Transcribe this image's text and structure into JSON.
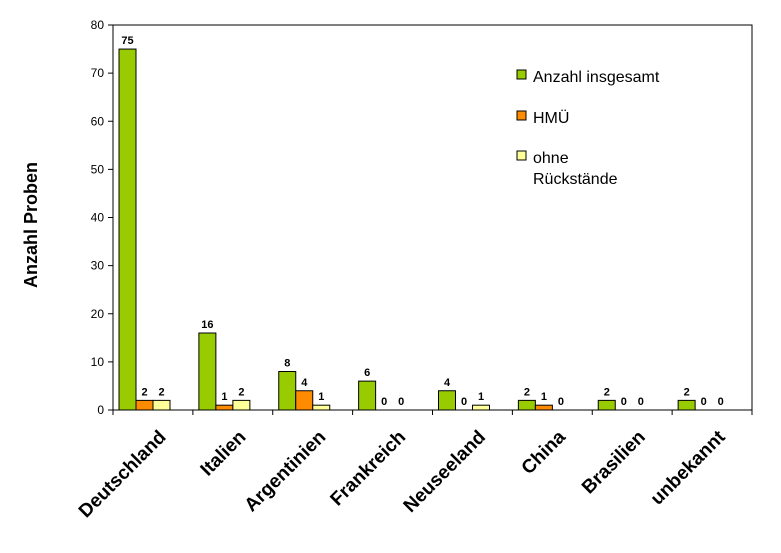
{
  "chart_data": {
    "type": "bar",
    "title": "",
    "xlabel": "",
    "ylabel": "Anzahl Proben",
    "ylim": [
      0,
      80
    ],
    "yticks": [
      0,
      10,
      20,
      30,
      40,
      50,
      60,
      70,
      80
    ],
    "grid": false,
    "legend_position": "top-right",
    "categories": [
      "Deutschland",
      "Italien",
      "Argentinien",
      "Frankreich",
      "Neuseeland",
      "China",
      "Brasilien",
      "unbekannt"
    ],
    "series": [
      {
        "name": "Anzahl insgesamt",
        "color": "#99CC00",
        "values": [
          75,
          16,
          8,
          6,
          4,
          2,
          2,
          2
        ]
      },
      {
        "name": "HMÜ",
        "color": "#FF8C00",
        "values": [
          2,
          1,
          4,
          0,
          0,
          1,
          0,
          0
        ]
      },
      {
        "name": "ohne Rückstände",
        "legend_lines": [
          "ohne",
          "Rückstände"
        ],
        "color": "#FFFF99",
        "values": [
          2,
          2,
          1,
          0,
          1,
          0,
          0,
          0
        ]
      }
    ]
  }
}
